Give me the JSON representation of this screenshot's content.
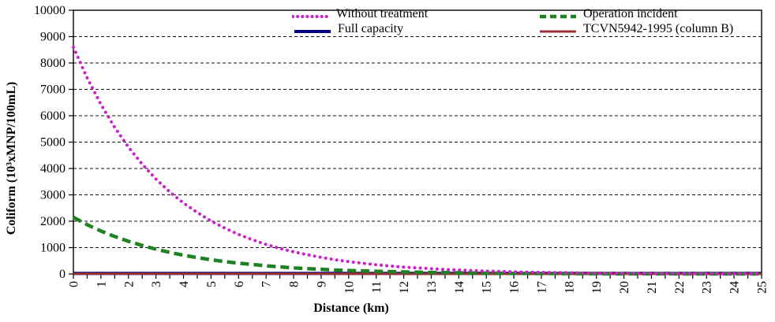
{
  "chart_data": {
    "type": "line",
    "title": "",
    "xlabel": "Distance (km)",
    "ylabel": "Coliform (10³xMNP/100mL)",
    "xlim": [
      0,
      25
    ],
    "ylim": [
      0,
      10000
    ],
    "x_tick_interval": 1,
    "x_minor_tick_interval": 0.5,
    "y_tick_interval": 1000,
    "grid": "horizontal-dashed",
    "legend_position": "top-inside-two-columns",
    "x_ticks": [
      0,
      1,
      2,
      3,
      4,
      5,
      6,
      7,
      8,
      9,
      10,
      11,
      12,
      13,
      14,
      15,
      16,
      17,
      18,
      19,
      20,
      21,
      22,
      23,
      24,
      25
    ],
    "y_ticks": [
      0,
      1000,
      2000,
      3000,
      4000,
      5000,
      6000,
      7000,
      8000,
      9000,
      10000
    ],
    "series": [
      {
        "name": "Full capacity",
        "color": "#000080",
        "style": "solid",
        "width": 4,
        "x": [
          0,
          25
        ],
        "values": [
          20,
          20
        ]
      },
      {
        "name": "TCVN5942-1995 (column B)",
        "color": "#993333",
        "style": "solid",
        "width": 3,
        "x": [
          0,
          25
        ],
        "values": [
          10,
          10
        ]
      },
      {
        "name": "Operation incident",
        "color": "#1e8222",
        "style": "dashed",
        "width": 4.5,
        "x": [
          0,
          0.5,
          1,
          1.5,
          2,
          2.5,
          3,
          3.5,
          4,
          4.5,
          5,
          5.5,
          6,
          6.5,
          7,
          7.5,
          8,
          8.5,
          9,
          9.5,
          10,
          10.5,
          11,
          11.5,
          12,
          12.5,
          13,
          13.5,
          14,
          14.5,
          15,
          15.5,
          16,
          16.5,
          17,
          17.5,
          18,
          18.5,
          19,
          19.5,
          20,
          20.5,
          21,
          21.5,
          22,
          22.5,
          23,
          23.5,
          24,
          24.5,
          25
        ],
        "values": [
          2150,
          1870,
          1630,
          1420,
          1240,
          1080,
          940,
          820,
          710,
          620,
          540,
          470,
          410,
          360,
          310,
          270,
          230,
          200,
          180,
          150,
          130,
          120,
          100,
          89,
          77,
          67,
          58,
          51,
          44,
          39,
          34,
          29,
          25,
          22,
          19,
          17,
          14,
          13,
          11,
          10,
          8,
          7,
          6,
          5,
          5,
          4,
          4,
          3,
          3,
          2,
          2
        ]
      },
      {
        "name": "Without treatment",
        "color": "#cc22cc",
        "style": "dotted",
        "width": 4,
        "x": [
          0,
          0.5,
          1,
          1.5,
          2,
          2.5,
          3,
          3.5,
          4,
          4.5,
          5,
          5.5,
          6,
          6.5,
          7,
          7.5,
          8,
          8.5,
          9,
          9.5,
          10,
          10.5,
          11,
          11.5,
          12,
          12.5,
          13,
          13.5,
          14,
          14.5,
          15,
          15.5,
          16,
          16.5,
          17,
          17.5,
          18,
          18.5,
          19,
          19.5,
          20,
          20.5,
          21,
          21.5,
          22,
          22.5,
          23,
          23.5,
          24,
          24.5,
          25
        ],
        "values": [
          8600,
          7440,
          6430,
          5560,
          4810,
          4160,
          3600,
          3110,
          2690,
          2330,
          2010,
          1740,
          1500,
          1300,
          1120,
          970,
          840,
          730,
          630,
          540,
          470,
          410,
          350,
          300,
          260,
          230,
          200,
          170,
          150,
          130,
          110,
          95,
          82,
          71,
          61,
          53,
          46,
          40,
          34,
          30,
          26,
          22,
          19,
          17,
          14,
          12,
          11,
          9,
          8,
          7,
          6
        ]
      }
    ],
    "legend_order": [
      3,
      2,
      0,
      1
    ]
  }
}
